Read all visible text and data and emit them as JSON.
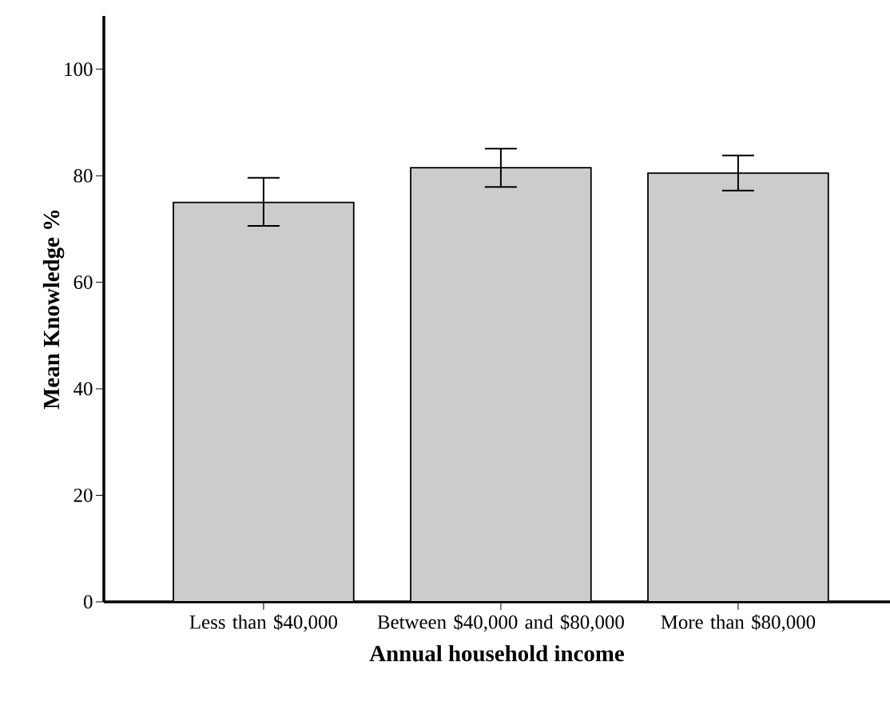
{
  "chart_data": {
    "type": "bar",
    "xlabel": "Annual household income",
    "ylabel": "Mean Knowledge %",
    "categories": [
      "Less than $40,000",
      "Between $40,000 and $80,000",
      "More than $80,000"
    ],
    "values": [
      75,
      81.5,
      80.5
    ],
    "color": "#cccccc",
    "errors": [
      [
        70.6,
        79.6
      ],
      [
        77.9,
        85.1
      ],
      [
        77.2,
        83.8
      ]
    ],
    "ylim": [
      0,
      110
    ],
    "yticks": [
      0,
      20,
      40,
      60,
      80,
      100
    ]
  }
}
